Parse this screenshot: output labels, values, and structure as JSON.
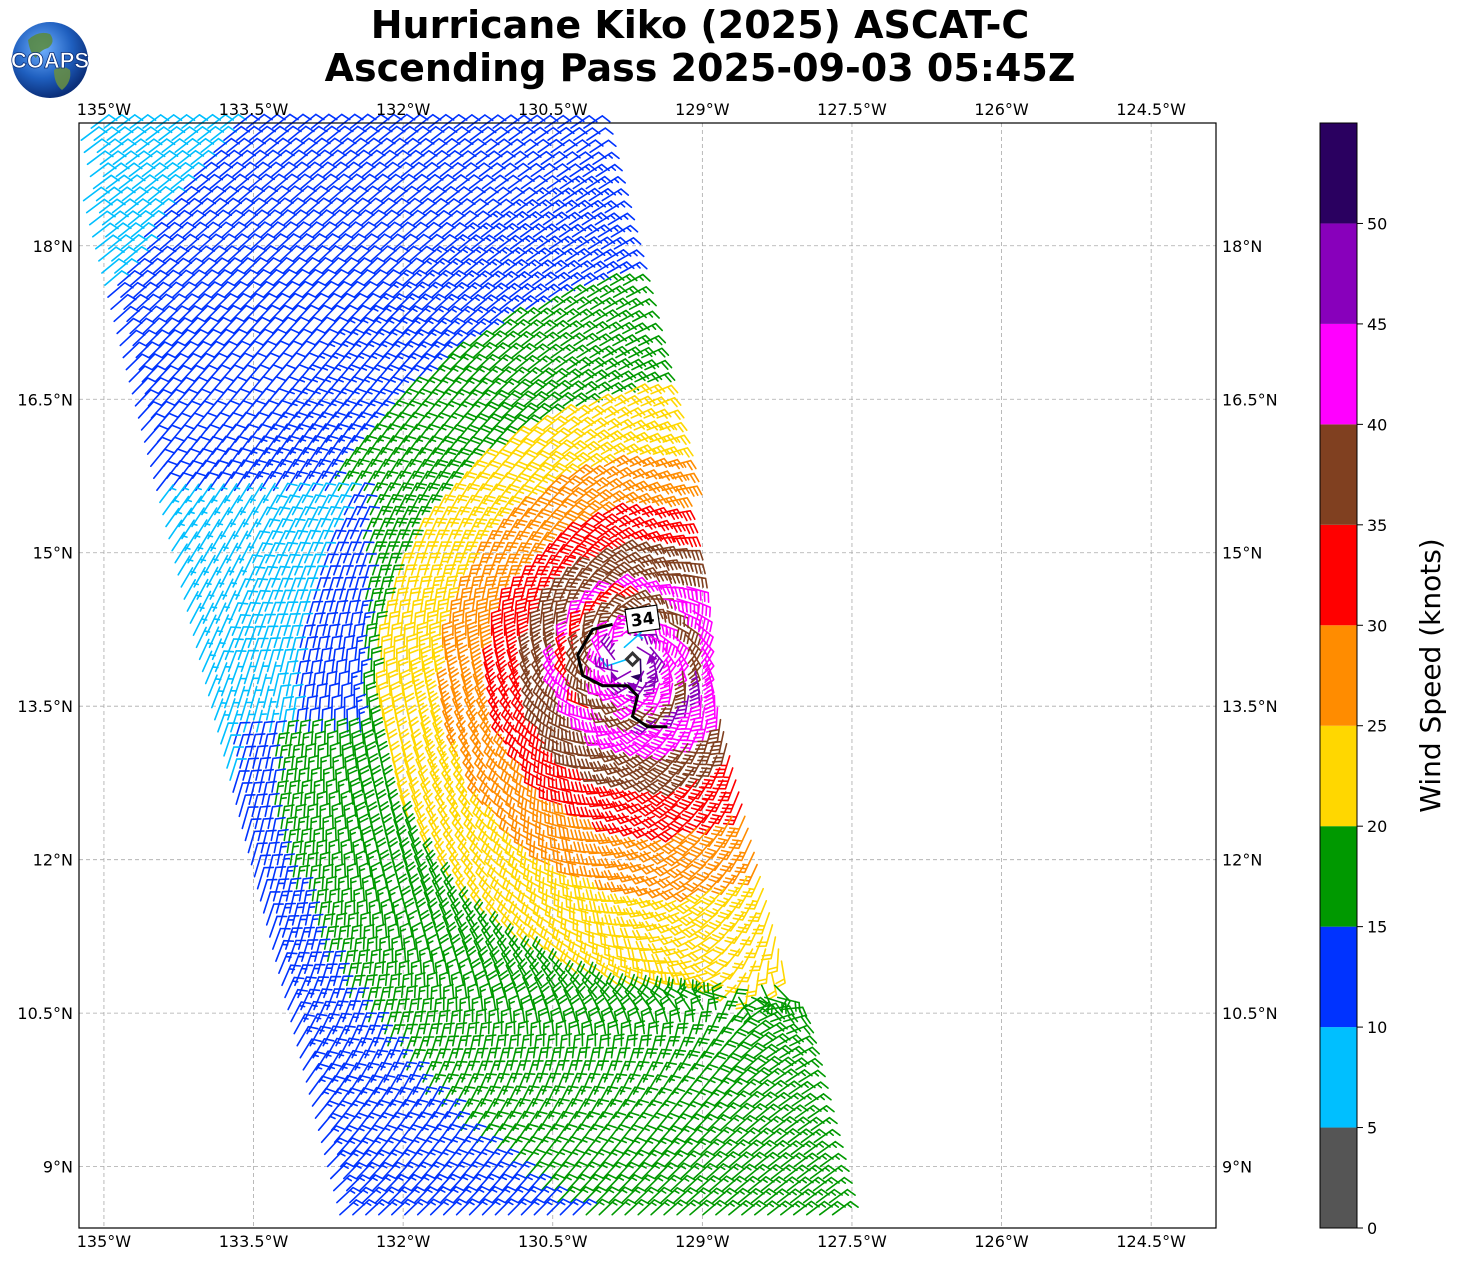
{
  "title": {
    "line1": "Hurricane Kiko (2025) ASCAT-C",
    "line2": "Ascending Pass 2025-09-03 05:45Z"
  },
  "logo": {
    "text": "COAPS"
  },
  "map": {
    "lon_range": [
      -135.25,
      -123.85
    ],
    "lat_range": [
      8.4,
      19.2
    ],
    "lon_ticks": [
      {
        "value": -135,
        "label": "135°W"
      },
      {
        "value": -133.5,
        "label": "133.5°W"
      },
      {
        "value": -132,
        "label": "132°W"
      },
      {
        "value": -130.5,
        "label": "130.5°W"
      },
      {
        "value": -129,
        "label": "129°W"
      },
      {
        "value": -127.5,
        "label": "127.5°W"
      },
      {
        "value": -126,
        "label": "126°W"
      },
      {
        "value": -124.5,
        "label": "124.5°W"
      }
    ],
    "lat_ticks": [
      {
        "value": 18,
        "label": "18°N"
      },
      {
        "value": 16.5,
        "label": "16.5°N"
      },
      {
        "value": 15,
        "label": "15°N"
      },
      {
        "value": 13.5,
        "label": "13.5°N"
      },
      {
        "value": 12,
        "label": "12°N"
      },
      {
        "value": 10.5,
        "label": "10.5°N"
      },
      {
        "value": 9,
        "label": "9°N"
      }
    ],
    "grid": true,
    "storm_center": {
      "lon": -129.75,
      "lat": 14.0
    },
    "contour_label": "34",
    "swath": {
      "top_lat": 19.2,
      "bottom_lat": 8.4,
      "west_lon_at_top": -135.4,
      "east_lon_at_top": -130.1,
      "west_lon_at_bottom": -132.6,
      "east_lon_at_bottom": -127.6
    }
  },
  "colorbar": {
    "label": "Wind Speed (knots)",
    "ticks": [
      "0",
      "5",
      "10",
      "15",
      "20",
      "25",
      "30",
      "35",
      "40",
      "45",
      "50"
    ],
    "bins": [
      {
        "min": 0,
        "max": 5,
        "color": "#555555"
      },
      {
        "min": 5,
        "max": 10,
        "color": "#00bfff"
      },
      {
        "min": 10,
        "max": 15,
        "color": "#0033ff"
      },
      {
        "min": 15,
        "max": 20,
        "color": "#009900"
      },
      {
        "min": 20,
        "max": 25,
        "color": "#ffd700"
      },
      {
        "min": 25,
        "max": 30,
        "color": "#ff8c00"
      },
      {
        "min": 30,
        "max": 35,
        "color": "#ff0000"
      },
      {
        "min": 35,
        "max": 40,
        "color": "#804020"
      },
      {
        "min": 40,
        "max": 45,
        "color": "#ff00ff"
      },
      {
        "min": 45,
        "max": 50,
        "color": "#8800bb"
      },
      {
        "min": 50,
        "max": 55,
        "color": "#2a0060"
      }
    ]
  }
}
